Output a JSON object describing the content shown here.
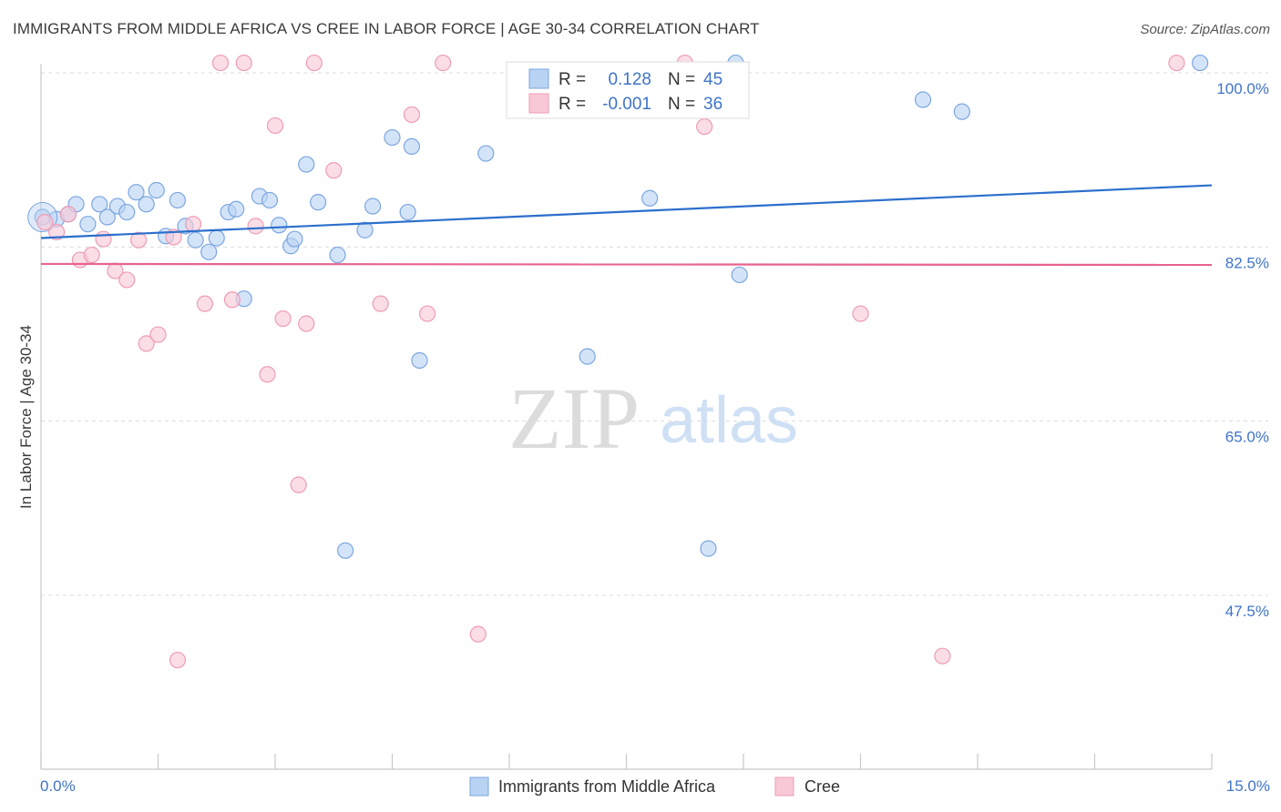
{
  "header": {
    "title": "IMMIGRANTS FROM MIDDLE AFRICA VS CREE IN LABOR FORCE | AGE 30-34 CORRELATION CHART",
    "source": "Source: ZipAtlas.com"
  },
  "colors": {
    "blue_fill": "#b9d3f3",
    "blue_stroke": "#7ba6e0",
    "blue_line": "#2b6fcc",
    "pink_fill": "#f9c8d6",
    "pink_stroke": "#ee9cb5",
    "pink_line": "#e8638f",
    "tick_text": "#3f74c8"
  },
  "watermark": {
    "zip": "ZIP",
    "atlas": "atlas"
  },
  "chart_data": {
    "type": "scatter",
    "title": "IMMIGRANTS FROM MIDDLE AFRICA VS CREE IN LABOR FORCE | AGE 30-34 CORRELATION CHART",
    "xlabel": "",
    "ylabel": "In Labor Force | Age 30-34",
    "xlim": [
      0,
      15
    ],
    "ylim": [
      31.5,
      102
    ],
    "x_tick_labels": {
      "min": "0.0%",
      "max": "15.0%"
    },
    "y_ticks": [
      100,
      82.5,
      65,
      47.5
    ],
    "y_tick_labels": [
      "100.0%",
      "82.5%",
      "65.0%",
      "47.5%"
    ],
    "legend": {
      "r_label": "R =",
      "n_label": "N =",
      "series": [
        {
          "r": "0.128",
          "n": "45"
        },
        {
          "r": "-0.001",
          "n": "36"
        }
      ]
    },
    "series": [
      {
        "name": "Immigrants from Middle Africa",
        "trend": {
          "x": [
            0,
            15
          ],
          "y": [
            83.4,
            88.7
          ]
        },
        "points": [
          {
            "x": 0.02,
            "y": 85.5
          },
          {
            "x": 0.2,
            "y": 85.3
          },
          {
            "x": 0.35,
            "y": 85.8
          },
          {
            "x": 0.45,
            "y": 86.8
          },
          {
            "x": 0.6,
            "y": 84.8
          },
          {
            "x": 0.75,
            "y": 86.8
          },
          {
            "x": 0.85,
            "y": 85.5
          },
          {
            "x": 0.98,
            "y": 86.6
          },
          {
            "x": 1.1,
            "y": 86.0
          },
          {
            "x": 1.22,
            "y": 88.0
          },
          {
            "x": 1.35,
            "y": 86.8
          },
          {
            "x": 1.48,
            "y": 88.2
          },
          {
            "x": 1.6,
            "y": 83.6
          },
          {
            "x": 1.75,
            "y": 87.2
          },
          {
            "x": 1.85,
            "y": 84.6
          },
          {
            "x": 1.98,
            "y": 83.2
          },
          {
            "x": 2.15,
            "y": 82.0
          },
          {
            "x": 2.25,
            "y": 83.4
          },
          {
            "x": 2.4,
            "y": 86.0
          },
          {
            "x": 2.5,
            "y": 86.3
          },
          {
            "x": 2.6,
            "y": 77.3
          },
          {
            "x": 2.8,
            "y": 87.6
          },
          {
            "x": 2.93,
            "y": 87.2
          },
          {
            "x": 3.05,
            "y": 84.7
          },
          {
            "x": 3.2,
            "y": 82.6
          },
          {
            "x": 3.25,
            "y": 83.3
          },
          {
            "x": 3.4,
            "y": 90.8
          },
          {
            "x": 3.55,
            "y": 87.0
          },
          {
            "x": 3.8,
            "y": 81.7
          },
          {
            "x": 3.9,
            "y": 52.0
          },
          {
            "x": 4.15,
            "y": 84.2
          },
          {
            "x": 4.25,
            "y": 86.6
          },
          {
            "x": 4.5,
            "y": 93.5
          },
          {
            "x": 4.7,
            "y": 86.0
          },
          {
            "x": 4.75,
            "y": 92.6
          },
          {
            "x": 4.85,
            "y": 71.1
          },
          {
            "x": 5.7,
            "y": 91.9
          },
          {
            "x": 7.0,
            "y": 71.5
          },
          {
            "x": 7.8,
            "y": 87.4
          },
          {
            "x": 8.55,
            "y": 52.2
          },
          {
            "x": 8.9,
            "y": 101.0
          },
          {
            "x": 8.95,
            "y": 79.7
          },
          {
            "x": 11.3,
            "y": 97.3
          },
          {
            "x": 11.8,
            "y": 96.1
          },
          {
            "x": 14.85,
            "y": 101.0
          }
        ]
      },
      {
        "name": "Cree",
        "trend": {
          "x": [
            0,
            15
          ],
          "y": [
            80.8,
            80.7
          ]
        },
        "points": [
          {
            "x": 0.05,
            "y": 85.0
          },
          {
            "x": 0.2,
            "y": 84.0
          },
          {
            "x": 0.35,
            "y": 85.8
          },
          {
            "x": 0.5,
            "y": 81.2
          },
          {
            "x": 0.65,
            "y": 81.7
          },
          {
            "x": 0.8,
            "y": 83.3
          },
          {
            "x": 0.95,
            "y": 80.1
          },
          {
            "x": 1.1,
            "y": 79.2
          },
          {
            "x": 1.25,
            "y": 83.2
          },
          {
            "x": 1.35,
            "y": 72.8
          },
          {
            "x": 1.5,
            "y": 73.7
          },
          {
            "x": 1.7,
            "y": 83.5
          },
          {
            "x": 1.75,
            "y": 41.0
          },
          {
            "x": 1.95,
            "y": 84.8
          },
          {
            "x": 2.1,
            "y": 76.8
          },
          {
            "x": 2.3,
            "y": 101.0
          },
          {
            "x": 2.45,
            "y": 77.2
          },
          {
            "x": 2.6,
            "y": 101.0
          },
          {
            "x": 2.75,
            "y": 84.6
          },
          {
            "x": 2.9,
            "y": 69.7
          },
          {
            "x": 3.0,
            "y": 94.7
          },
          {
            "x": 3.1,
            "y": 75.3
          },
          {
            "x": 3.3,
            "y": 58.6
          },
          {
            "x": 3.4,
            "y": 74.8
          },
          {
            "x": 3.5,
            "y": 101.0
          },
          {
            "x": 3.75,
            "y": 90.2
          },
          {
            "x": 4.35,
            "y": 76.8
          },
          {
            "x": 4.75,
            "y": 95.8
          },
          {
            "x": 4.95,
            "y": 75.8
          },
          {
            "x": 5.15,
            "y": 101.0
          },
          {
            "x": 5.6,
            "y": 43.6
          },
          {
            "x": 8.25,
            "y": 101.0
          },
          {
            "x": 8.5,
            "y": 94.6
          },
          {
            "x": 10.5,
            "y": 75.8
          },
          {
            "x": 11.55,
            "y": 41.4
          },
          {
            "x": 14.55,
            "y": 101.0
          }
        ]
      }
    ]
  }
}
